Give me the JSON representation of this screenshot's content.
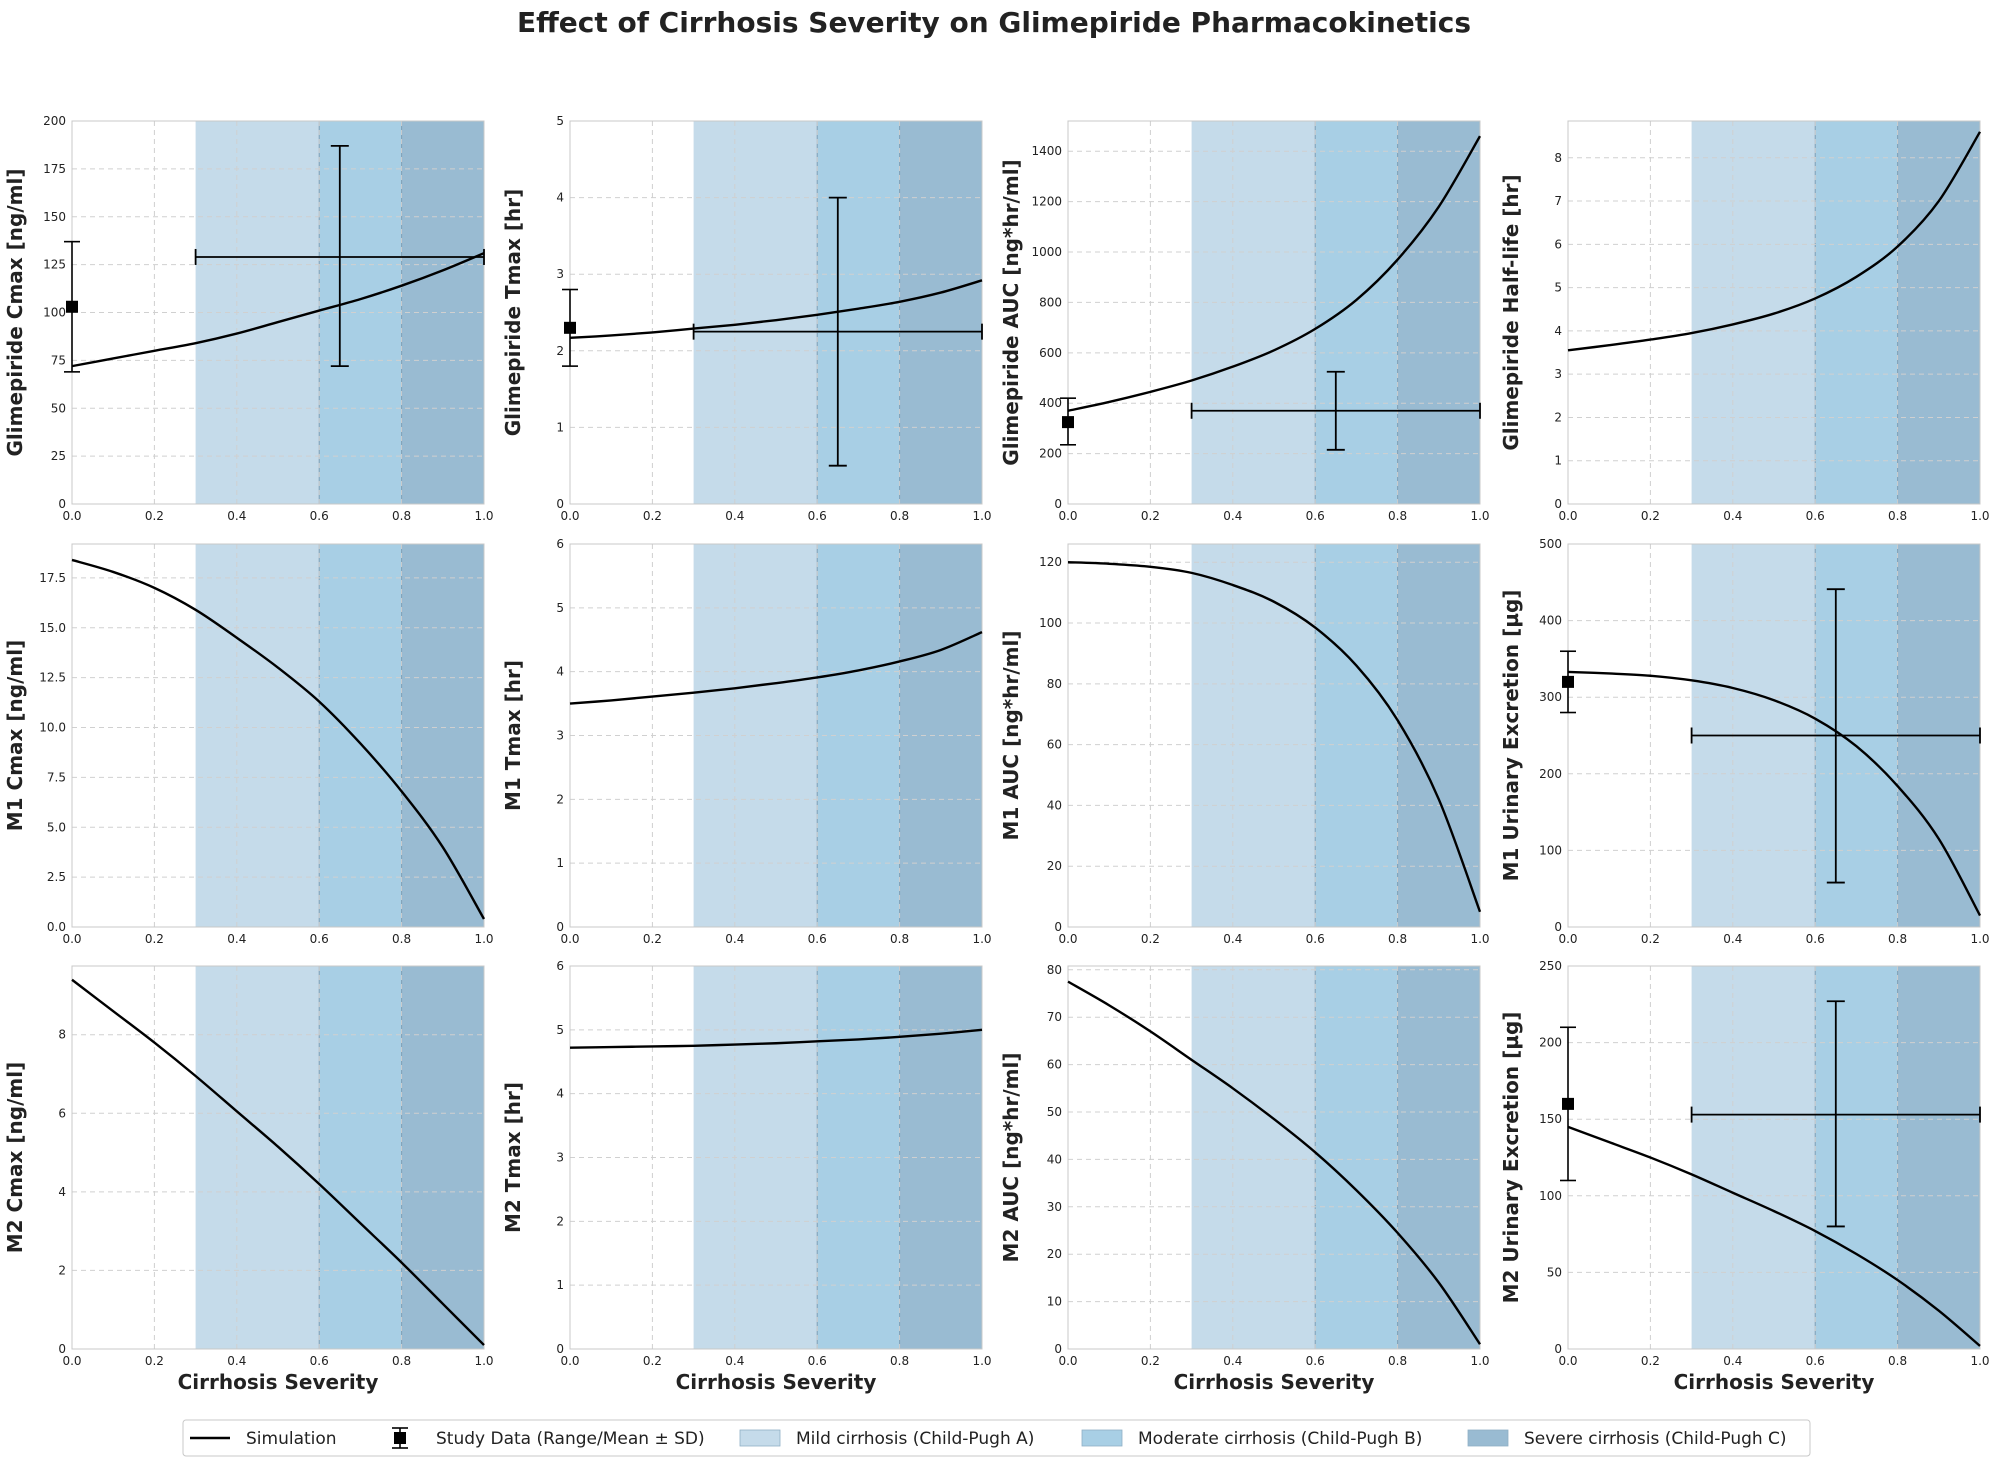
{
  "figure": {
    "title": "Effect of Cirrhosis Severity on Glimepiride Pharmacokinetics",
    "xlabel": "Cirrhosis Severity"
  },
  "legend": [
    {
      "kind": "line",
      "label": "Simulation",
      "color": "#000000"
    },
    {
      "kind": "errorbar",
      "label": "Study Data (Range/Mean ± SD)",
      "color": "#000000"
    },
    {
      "kind": "patch",
      "label": "Mild cirrhosis (Child-Pugh A)",
      "color": "#c5dbea"
    },
    {
      "kind": "patch",
      "label": "Moderate cirrhosis (Child-Pugh B)",
      "color": "#a8cfe5"
    },
    {
      "kind": "patch",
      "label": "Severe cirrhosis (Child-Pugh C)",
      "color": "#99bbd2"
    }
  ],
  "chart_data": [
    {
      "type": "line",
      "ylabel": "Glimepiride Cmax [ng/ml]",
      "xlim": [
        0,
        1
      ],
      "ylim": [
        0,
        200
      ],
      "yticks": [
        0,
        25,
        50,
        75,
        100,
        125,
        150,
        175,
        200
      ],
      "xticks": [
        0,
        0.2,
        0.4,
        0.6,
        0.8,
        1.0
      ],
      "x": [
        0,
        0.1,
        0.2,
        0.3,
        0.4,
        0.5,
        0.6,
        0.7,
        0.8,
        0.9,
        1.0
      ],
      "y": [
        72,
        76,
        80,
        84,
        89,
        95,
        101,
        107,
        114,
        122,
        131
      ],
      "points": [
        {
          "x": 0,
          "y": 103,
          "ylo": 69,
          "yhi": 137
        }
      ],
      "ranges": [
        {
          "xlo": 0.3,
          "xhi": 1.0,
          "xmid": 0.65,
          "y": 129,
          "ylo": 72,
          "yhi": 187
        }
      ]
    },
    {
      "type": "line",
      "ylabel": "Glimepiride Tmax [hr]",
      "xlim": [
        0,
        1
      ],
      "ylim": [
        0,
        5
      ],
      "yticks": [
        0,
        1,
        2,
        3,
        4,
        5
      ],
      "xticks": [
        0,
        0.2,
        0.4,
        0.6,
        0.8,
        1.0
      ],
      "x": [
        0,
        0.1,
        0.2,
        0.3,
        0.4,
        0.5,
        0.6,
        0.7,
        0.8,
        0.9,
        1.0
      ],
      "y": [
        2.17,
        2.2,
        2.24,
        2.29,
        2.34,
        2.4,
        2.47,
        2.55,
        2.64,
        2.76,
        2.92
      ],
      "points": [
        {
          "x": 0,
          "y": 2.3,
          "ylo": 1.8,
          "yhi": 2.8
        }
      ],
      "ranges": [
        {
          "xlo": 0.3,
          "xhi": 1.0,
          "xmid": 0.65,
          "y": 2.25,
          "ylo": 0.5,
          "yhi": 4.0
        }
      ]
    },
    {
      "type": "line",
      "ylabel": "Glimepiride AUC [ng*hr/ml]",
      "xlim": [
        0,
        1
      ],
      "ylim": [
        0,
        1520
      ],
      "yticks": [
        0,
        200,
        400,
        600,
        800,
        1000,
        1200,
        1400
      ],
      "xticks": [
        0,
        0.2,
        0.4,
        0.6,
        0.8,
        1.0
      ],
      "x": [
        0,
        0.1,
        0.2,
        0.3,
        0.4,
        0.5,
        0.6,
        0.7,
        0.8,
        0.9,
        1.0
      ],
      "y": [
        370,
        405,
        445,
        490,
        545,
        610,
        695,
        810,
        970,
        1180,
        1460
      ],
      "points": [
        {
          "x": 0,
          "y": 325,
          "ylo": 235,
          "yhi": 420
        }
      ],
      "ranges": [
        {
          "xlo": 0.3,
          "xhi": 1.0,
          "xmid": 0.65,
          "y": 370,
          "ylo": 215,
          "yhi": 525
        }
      ]
    },
    {
      "type": "line",
      "ylabel": "Glimepiride Half-life [hr]",
      "xlim": [
        0,
        1
      ],
      "ylim": [
        0,
        8.85
      ],
      "yticks": [
        0,
        1,
        2,
        3,
        4,
        5,
        6,
        7,
        8
      ],
      "xticks": [
        0,
        0.2,
        0.4,
        0.6,
        0.8,
        1.0
      ],
      "x": [
        0,
        0.1,
        0.2,
        0.3,
        0.4,
        0.5,
        0.6,
        0.7,
        0.8,
        0.9,
        1.0
      ],
      "y": [
        3.55,
        3.67,
        3.8,
        3.95,
        4.15,
        4.4,
        4.75,
        5.25,
        5.95,
        7.0,
        8.6
      ],
      "points": [],
      "ranges": []
    },
    {
      "type": "line",
      "ylabel": "M1 Cmax [ng/ml]",
      "xlim": [
        0,
        1
      ],
      "ylim": [
        0,
        19.2
      ],
      "yticks": [
        0.0,
        2.5,
        5.0,
        7.5,
        10.0,
        12.5,
        15.0,
        17.5
      ],
      "xticks": [
        0,
        0.2,
        0.4,
        0.6,
        0.8,
        1.0
      ],
      "x": [
        0,
        0.1,
        0.2,
        0.3,
        0.4,
        0.5,
        0.6,
        0.7,
        0.8,
        0.9,
        1.0
      ],
      "y": [
        18.4,
        17.8,
        17.0,
        15.9,
        14.5,
        13.0,
        11.3,
        9.2,
        6.8,
        4.0,
        0.4
      ],
      "points": [],
      "ranges": []
    },
    {
      "type": "line",
      "ylabel": "M1 Tmax [hr]",
      "xlim": [
        0,
        1
      ],
      "ylim": [
        0,
        6
      ],
      "yticks": [
        0,
        1,
        2,
        3,
        4,
        5,
        6
      ],
      "xticks": [
        0,
        0.2,
        0.4,
        0.6,
        0.8,
        1.0
      ],
      "x": [
        0,
        0.1,
        0.2,
        0.3,
        0.4,
        0.5,
        0.6,
        0.7,
        0.8,
        0.9,
        1.0
      ],
      "y": [
        3.5,
        3.55,
        3.61,
        3.67,
        3.74,
        3.82,
        3.91,
        4.02,
        4.16,
        4.34,
        4.62
      ],
      "points": [],
      "ranges": []
    },
    {
      "type": "line",
      "ylabel": "M1 AUC [ng*hr/ml]",
      "xlim": [
        0,
        1
      ],
      "ylim": [
        0,
        126
      ],
      "yticks": [
        0,
        20,
        40,
        60,
        80,
        100,
        120
      ],
      "xticks": [
        0,
        0.2,
        0.4,
        0.6,
        0.8,
        1.0
      ],
      "x": [
        0,
        0.1,
        0.2,
        0.3,
        0.4,
        0.5,
        0.6,
        0.7,
        0.8,
        0.9,
        1.0
      ],
      "y": [
        120,
        119.5,
        118.5,
        116.5,
        112.5,
        107,
        98.5,
        86,
        68,
        42,
        5
      ],
      "points": [],
      "ranges": []
    },
    {
      "type": "line",
      "ylabel": "M1 Urinary Excretion [µg]",
      "xlim": [
        0,
        1
      ],
      "ylim": [
        0,
        500
      ],
      "yticks": [
        0,
        100,
        200,
        300,
        400,
        500
      ],
      "xticks": [
        0,
        0.2,
        0.4,
        0.6,
        0.8,
        1.0
      ],
      "x": [
        0,
        0.1,
        0.2,
        0.3,
        0.4,
        0.5,
        0.6,
        0.7,
        0.8,
        0.9,
        1.0
      ],
      "y": [
        333,
        331,
        328,
        322,
        312,
        296,
        272,
        236,
        184,
        115,
        15
      ],
      "points": [
        {
          "x": 0,
          "y": 320,
          "ylo": 280,
          "yhi": 360
        }
      ],
      "ranges": [
        {
          "xlo": 0.3,
          "xhi": 1.0,
          "xmid": 0.65,
          "y": 250,
          "ylo": 58,
          "yhi": 441
        }
      ]
    },
    {
      "type": "line",
      "ylabel": "M2 Cmax [ng/ml]",
      "xlim": [
        0,
        1
      ],
      "ylim": [
        0,
        9.75
      ],
      "yticks": [
        0,
        2,
        4,
        6,
        8
      ],
      "xticks": [
        0,
        0.2,
        0.4,
        0.6,
        0.8,
        1.0
      ],
      "x": [
        0,
        0.1,
        0.2,
        0.3,
        0.4,
        0.5,
        0.6,
        0.7,
        0.8,
        0.9,
        1.0
      ],
      "y": [
        9.4,
        8.6,
        7.8,
        6.95,
        6.05,
        5.15,
        4.2,
        3.2,
        2.2,
        1.15,
        0.1
      ],
      "points": [],
      "ranges": []
    },
    {
      "type": "line",
      "ylabel": "M2 Tmax [hr]",
      "xlim": [
        0,
        1
      ],
      "ylim": [
        0,
        6
      ],
      "yticks": [
        0,
        1,
        2,
        3,
        4,
        5,
        6
      ],
      "xticks": [
        0,
        0.2,
        0.4,
        0.6,
        0.8,
        1.0
      ],
      "x": [
        0,
        0.1,
        0.2,
        0.3,
        0.4,
        0.5,
        0.6,
        0.7,
        0.8,
        0.9,
        1.0
      ],
      "y": [
        4.72,
        4.73,
        4.74,
        4.75,
        4.77,
        4.79,
        4.82,
        4.85,
        4.89,
        4.94,
        5.0
      ],
      "points": [],
      "ranges": []
    },
    {
      "type": "line",
      "ylabel": "M2 AUC [ng*hr/ml]",
      "xlim": [
        0,
        1
      ],
      "ylim": [
        0,
        80.8
      ],
      "yticks": [
        0,
        10,
        20,
        30,
        40,
        50,
        60,
        70,
        80
      ],
      "xticks": [
        0,
        0.2,
        0.4,
        0.6,
        0.8,
        1.0
      ],
      "x": [
        0,
        0.1,
        0.2,
        0.3,
        0.4,
        0.5,
        0.6,
        0.7,
        0.8,
        0.9,
        1.0
      ],
      "y": [
        77.5,
        72.5,
        67,
        61,
        55,
        48.5,
        41.5,
        33.5,
        24.5,
        14,
        1
      ],
      "points": [],
      "ranges": []
    },
    {
      "type": "line",
      "ylabel": "M2 Urinary Excretion [µg]",
      "xlim": [
        0,
        1
      ],
      "ylim": [
        0,
        250
      ],
      "yticks": [
        0,
        50,
        100,
        150,
        200,
        250
      ],
      "xticks": [
        0,
        0.2,
        0.4,
        0.6,
        0.8,
        1.0
      ],
      "x": [
        0,
        0.1,
        0.2,
        0.3,
        0.4,
        0.5,
        0.6,
        0.7,
        0.8,
        0.9,
        1.0
      ],
      "y": [
        145,
        135,
        125,
        114,
        102,
        90,
        77,
        62,
        45,
        25,
        2
      ],
      "points": [
        {
          "x": 0,
          "y": 160,
          "ylo": 110,
          "yhi": 210
        }
      ],
      "ranges": [
        {
          "xlo": 0.3,
          "xhi": 1.0,
          "xmid": 0.65,
          "y": 153,
          "ylo": 80,
          "yhi": 227
        }
      ]
    }
  ],
  "bands": [
    {
      "from": 0.3,
      "to": 0.6,
      "color": "#c5dbea"
    },
    {
      "from": 0.6,
      "to": 0.8,
      "color": "#a8cfe5"
    },
    {
      "from": 0.8,
      "to": 1.0,
      "color": "#99bbd2"
    }
  ]
}
